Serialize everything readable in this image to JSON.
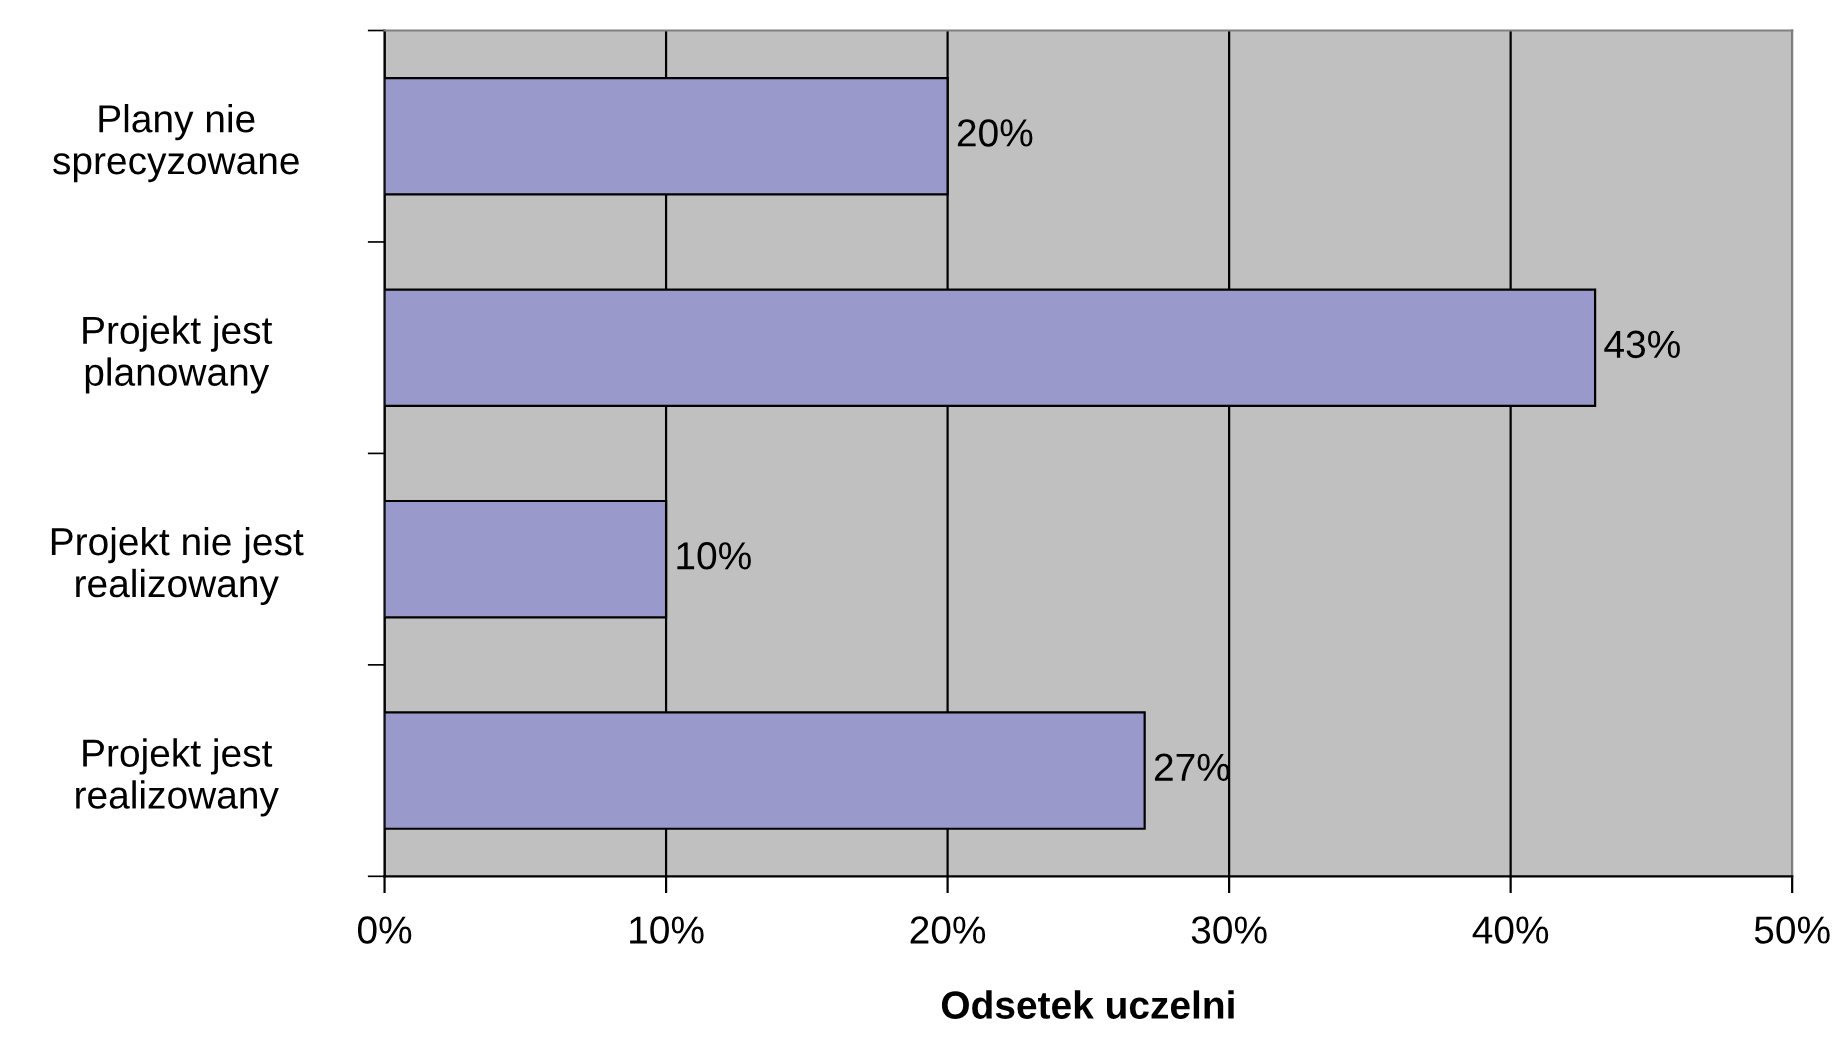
{
  "chart_data": {
    "type": "bar",
    "orientation": "horizontal",
    "categories": [
      "Plany nie\nsprecyzowane",
      "Projekt jest\nplanowany",
      "Projekt nie jest\nrealizowany",
      "Projekt jest\nrealizowany"
    ],
    "values": [
      20,
      43,
      10,
      27
    ],
    "value_labels": [
      "20%",
      "43%",
      "10%",
      "27%"
    ],
    "color": "#9999cc",
    "xlabel": "Odsetek uczelni",
    "xlim": [
      0,
      50
    ],
    "xticks": [
      {
        "value": 0,
        "label": "0%"
      },
      {
        "value": 10,
        "label": "10%"
      },
      {
        "value": 20,
        "label": "20%"
      },
      {
        "value": 30,
        "label": "30%"
      },
      {
        "value": 40,
        "label": "40%"
      },
      {
        "value": 50,
        "label": "50%"
      }
    ],
    "grid": "x",
    "legend": false
  }
}
